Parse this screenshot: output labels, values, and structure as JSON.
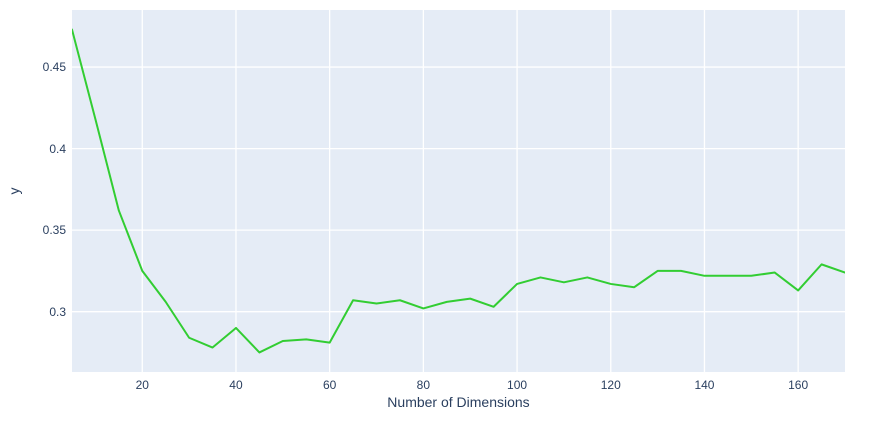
{
  "page": {
    "background_color": "#ffffff"
  },
  "chart_data": {
    "type": "line",
    "title": "",
    "xlabel": "Number of Dimensions",
    "ylabel": "y",
    "x": [
      5,
      10,
      15,
      20,
      25,
      30,
      35,
      40,
      45,
      50,
      55,
      60,
      65,
      70,
      75,
      80,
      85,
      90,
      95,
      100,
      105,
      110,
      115,
      120,
      125,
      130,
      135,
      140,
      145,
      150,
      155,
      160,
      165,
      170
    ],
    "series": [
      {
        "name": "y",
        "color": "#32cd32",
        "values": [
          0.473,
          0.418,
          0.362,
          0.325,
          0.306,
          0.284,
          0.278,
          0.29,
          0.275,
          0.282,
          0.283,
          0.281,
          0.307,
          0.305,
          0.307,
          0.302,
          0.306,
          0.308,
          0.303,
          0.317,
          0.321,
          0.318,
          0.321,
          0.317,
          0.315,
          0.325,
          0.325,
          0.322,
          0.322,
          0.322,
          0.324,
          0.313,
          0.329,
          0.324
        ]
      }
    ],
    "xticks": [
      20,
      40,
      60,
      80,
      100,
      120,
      140,
      160
    ],
    "yticks": [
      0.3,
      0.35,
      0.4,
      0.45
    ],
    "xlim": [
      5,
      170
    ],
    "ylim": [
      0.263,
      0.485
    ],
    "grid": true,
    "legend_position": "none",
    "plot_background": "#e5ecf6",
    "grid_color": "#ffffff",
    "text_color": "#2a3f5f",
    "line_width": 2
  }
}
